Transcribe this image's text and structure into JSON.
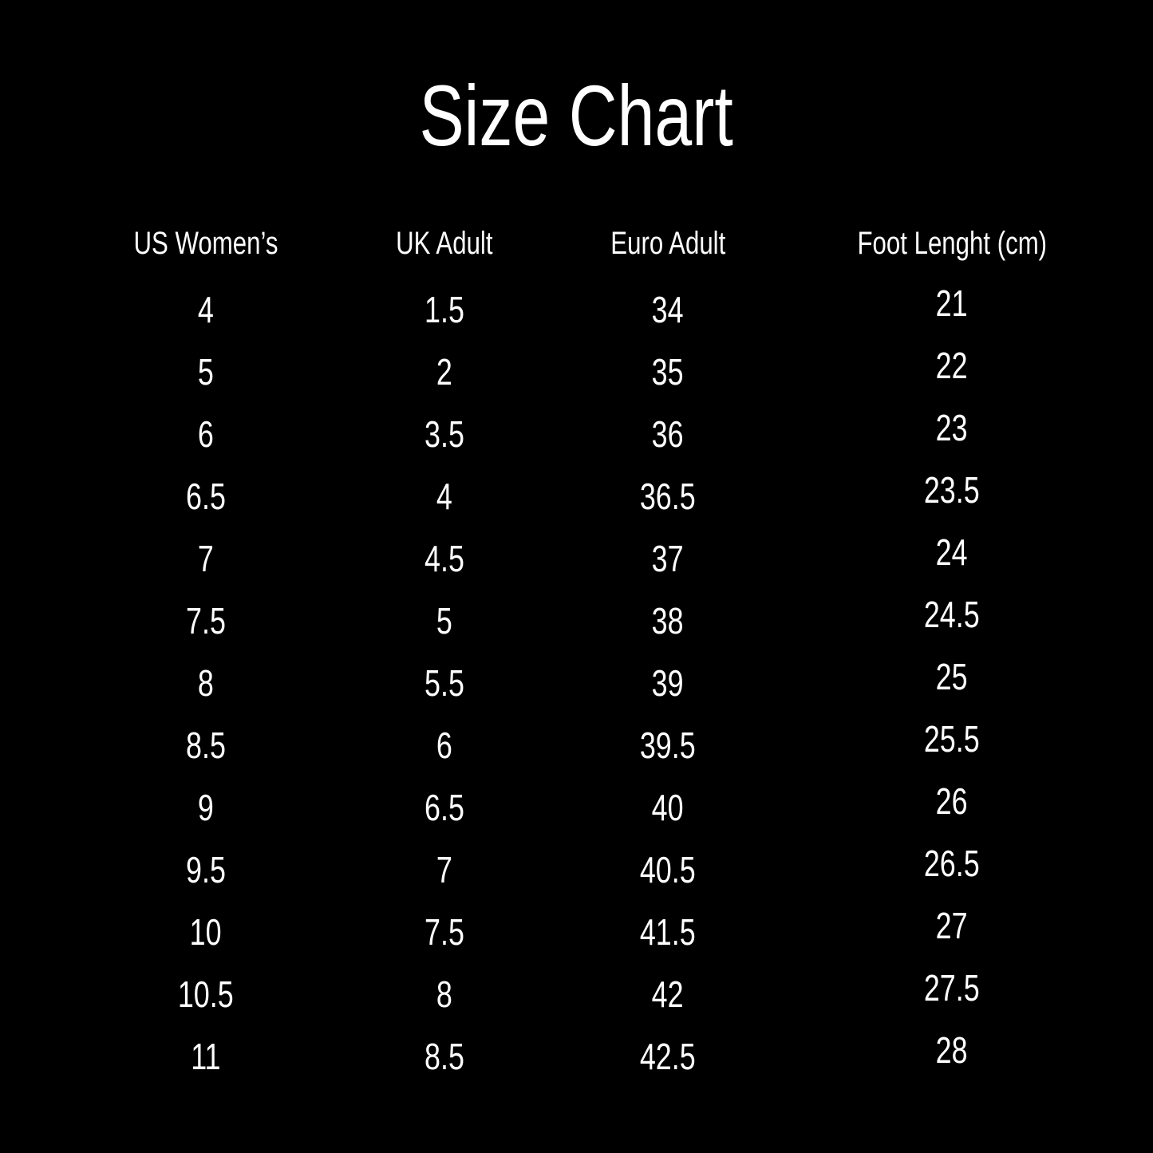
{
  "page": {
    "background_color": "#000000",
    "text_color": "#ffffff"
  },
  "title": "Size Chart",
  "chart_data": {
    "type": "table",
    "title": "Size Chart",
    "columns": [
      "US Women’s",
      "UK Adult",
      "Euro Adult",
      "Foot Lenght (cm)"
    ],
    "rows": [
      [
        "4",
        "1.5",
        "34",
        "21"
      ],
      [
        "5",
        "2",
        "35",
        "22"
      ],
      [
        "6",
        "3.5",
        "36",
        "23"
      ],
      [
        "6.5",
        "4",
        "36.5",
        "23.5"
      ],
      [
        "7",
        "4.5",
        "37",
        "24"
      ],
      [
        "7.5",
        "5",
        "38",
        "24.5"
      ],
      [
        "8",
        "5.5",
        "39",
        "25"
      ],
      [
        "8.5",
        "6",
        "39.5",
        "25.5"
      ],
      [
        "9",
        "6.5",
        "40",
        "26"
      ],
      [
        "9.5",
        "7",
        "40.5",
        "26.5"
      ],
      [
        "10",
        "7.5",
        "41.5",
        "27"
      ],
      [
        "10.5",
        "8",
        "42",
        "27.5"
      ],
      [
        "11",
        "8.5",
        "42.5",
        "28"
      ]
    ]
  }
}
